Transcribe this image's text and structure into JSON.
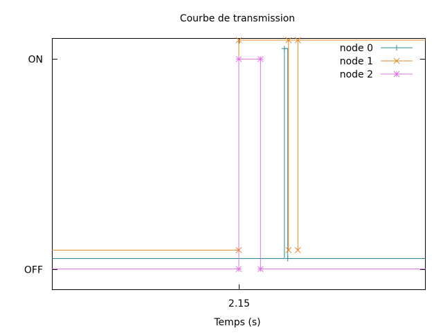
{
  "chart_data": {
    "type": "line",
    "title": "Courbe de transmission",
    "xlabel": "Temps (s)",
    "ylabel": "",
    "xlim": [
      2.1,
      2.2
    ],
    "ylim": [
      -0.1,
      1.1
    ],
    "x_ticks": [
      {
        "value": 2.15,
        "label": "2.15"
      }
    ],
    "y_ticks": [
      {
        "value": 0,
        "label": "OFF"
      },
      {
        "value": 1,
        "label": "ON"
      }
    ],
    "grid": false,
    "legend_position": "top-right",
    "series": [
      {
        "name": "node 0",
        "color": "#2a8a91",
        "marker": "plus",
        "step": true,
        "points": [
          {
            "x": 2.15,
            "y": 0.05
          },
          {
            "x": 2.1622,
            "y": 1.05
          },
          {
            "x": 2.1631,
            "y": 0.05
          }
        ],
        "line_end": 2.2
      },
      {
        "name": "node 1",
        "color": "#e08a2c",
        "marker": "x",
        "step": true,
        "points": [
          {
            "x": 2.15,
            "y": 0.09
          },
          {
            "x": 2.15,
            "y": 1.09
          },
          {
            "x": 2.1633,
            "y": 0.09
          },
          {
            "x": 2.1633,
            "y": 1.09
          },
          {
            "x": 2.1658,
            "y": 0.09
          },
          {
            "x": 2.1658,
            "y": 1.09
          }
        ],
        "line_end": 2.2
      },
      {
        "name": "node 2",
        "color": "#e070e0",
        "marker": "star",
        "step": true,
        "points": [
          {
            "x": 2.15,
            "y": 0.0
          },
          {
            "x": 2.15,
            "y": 1.0
          },
          {
            "x": 2.1558,
            "y": 1.0
          },
          {
            "x": 2.1558,
            "y": 0.0
          }
        ],
        "line_end": 2.2
      }
    ]
  }
}
